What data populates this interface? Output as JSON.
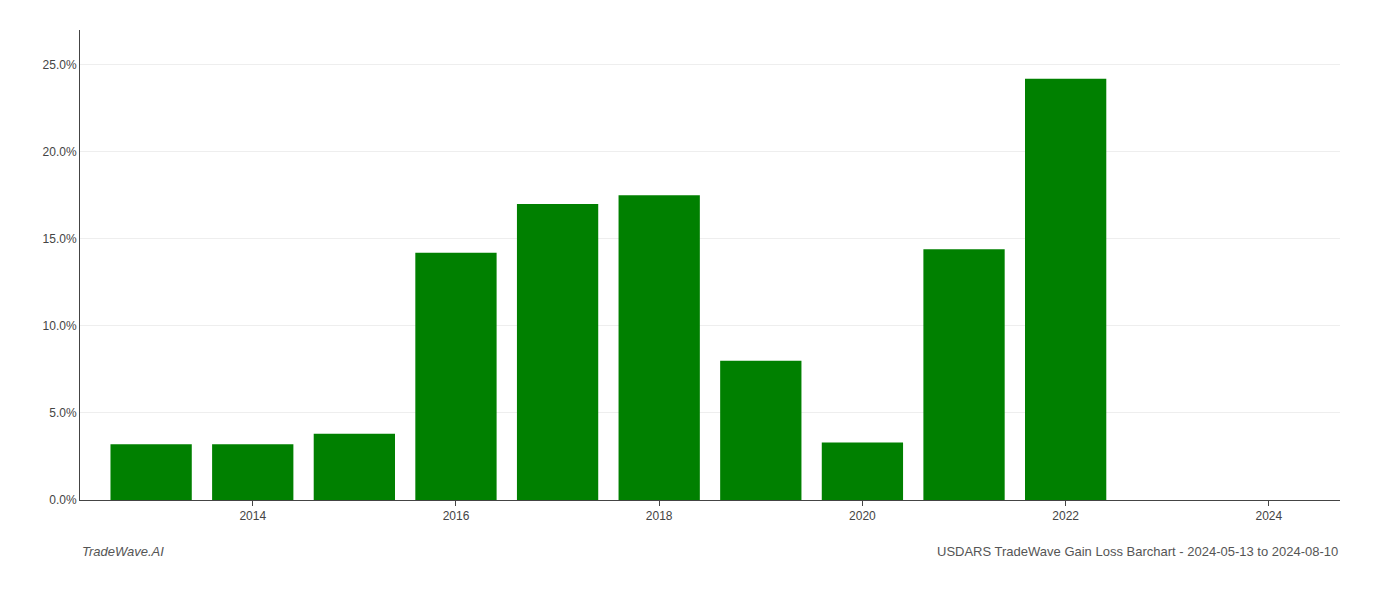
{
  "chart_data": {
    "type": "bar",
    "title": "USDARS TradeWave Gain Loss Barchart - 2024-05-13 to 2024-08-10",
    "annotations": [
      "TradeWave.AI"
    ],
    "x": [
      2013,
      2014,
      2015,
      2016,
      2017,
      2018,
      2019,
      2020,
      2021,
      2022
    ],
    "values": [
      0.032,
      0.032,
      0.038,
      0.142,
      0.17,
      0.175,
      0.08,
      0.033,
      0.144,
      0.242
    ],
    "color": "#008000",
    "xlim": [
      2012.3,
      2024.7
    ],
    "xticks": [
      2014,
      2016,
      2018,
      2020,
      2022,
      2024
    ],
    "ylim": [
      0,
      0.27
    ],
    "yticks": [
      {
        "value": 0.0,
        "label": "0.0%"
      },
      {
        "value": 0.05,
        "label": "5.0%"
      },
      {
        "value": 0.1,
        "label": "10.0%"
      },
      {
        "value": 0.15,
        "label": "15.0%"
      },
      {
        "value": 0.2,
        "label": "20.0%"
      },
      {
        "value": 0.25,
        "label": "25.0%"
      }
    ],
    "grid": true
  }
}
